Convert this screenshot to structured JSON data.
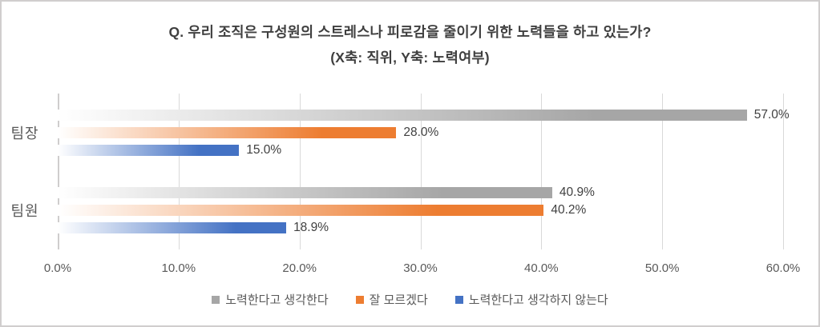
{
  "chart_data": {
    "type": "bar",
    "orientation": "horizontal",
    "title": "Q. 우리 조직은 구성원의 스트레스나 피로감을 줄이기 위한 노력들을 하고 있는가?",
    "subtitle": "(X축: 직위, Y축: 노력여부)",
    "categories": [
      "팀장",
      "팀원"
    ],
    "series": [
      {
        "name": "노력한다고 생각한다",
        "color": "#a6a6a6",
        "values": [
          57.0,
          40.9
        ],
        "data_labels": [
          "57.0%",
          "40.9%"
        ]
      },
      {
        "name": "잘 모르겠다",
        "color": "#ed7d31",
        "values": [
          28.0,
          40.2
        ],
        "data_labels": [
          "28.0%",
          "40.2%"
        ]
      },
      {
        "name": "노력한다고 생각하지 않는다",
        "color": "#4472c4",
        "values": [
          15.0,
          18.9
        ],
        "data_labels": [
          "15.0%",
          "18.9%"
        ]
      }
    ],
    "x_axis": {
      "min": 0,
      "max": 60,
      "tick_values": [
        0,
        10,
        20,
        30,
        40,
        50,
        60
      ],
      "tick_labels": [
        "0.0%",
        "10.0%",
        "20.0%",
        "30.0%",
        "40.0%",
        "50.0%",
        "60.0%"
      ]
    },
    "grid": true,
    "legend_position": "bottom",
    "bar_fill": "gradient-white-to-color"
  },
  "style": {
    "frame_border_color": "#d0cece",
    "background_color": "#ffffff",
    "title_color": "#3f3f3f",
    "axis_text_color": "#595959",
    "data_label_color": "#404040",
    "gridline_color": "#d9d9d9",
    "axis_line_color": "#cfcdcd"
  }
}
